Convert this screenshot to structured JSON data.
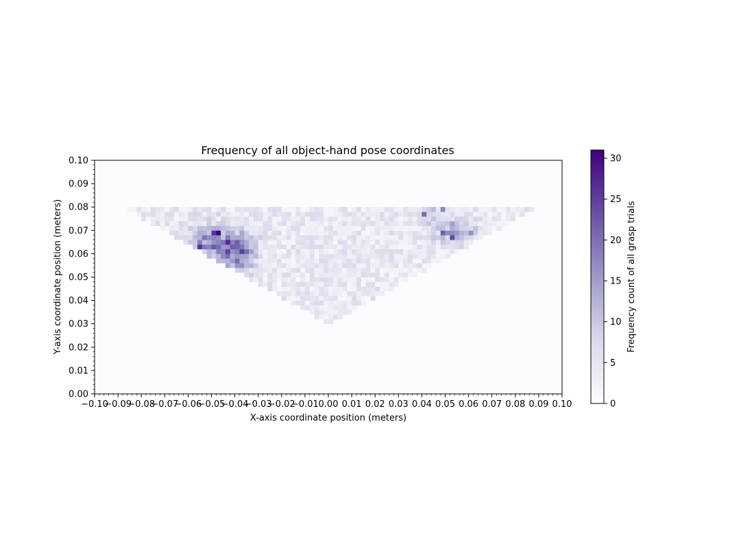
{
  "chart_data": {
    "type": "heatmap",
    "title": "Frequency of all object-hand pose coordinates",
    "xlabel": "X-axis coordinate position (meters)",
    "ylabel": "Y-axis coordinate position (meters)",
    "colorbar_label": "Frequency count of all grasp trials",
    "xlim": [
      -0.1,
      0.1
    ],
    "ylim": [
      0.0,
      0.1
    ],
    "color_range": [
      0,
      31
    ],
    "colormap": "Purples",
    "background_color": "#fcfbfd",
    "bin_size": 0.002,
    "x_ticks": [
      {
        "value": -0.1,
        "label": "−0.10"
      },
      {
        "value": -0.09,
        "label": "−0.09"
      },
      {
        "value": -0.08,
        "label": "−0.08"
      },
      {
        "value": -0.07,
        "label": "−0.07"
      },
      {
        "value": -0.06,
        "label": "−0.06"
      },
      {
        "value": -0.05,
        "label": "−0.05"
      },
      {
        "value": -0.04,
        "label": "−0.04"
      },
      {
        "value": -0.03,
        "label": "−0.03"
      },
      {
        "value": -0.02,
        "label": "−0.02"
      },
      {
        "value": -0.01,
        "label": "−0.01"
      },
      {
        "value": 0.0,
        "label": "0.00"
      },
      {
        "value": 0.01,
        "label": "0.01"
      },
      {
        "value": 0.02,
        "label": "0.02"
      },
      {
        "value": 0.03,
        "label": "0.03"
      },
      {
        "value": 0.04,
        "label": "0.04"
      },
      {
        "value": 0.05,
        "label": "0.05"
      },
      {
        "value": 0.06,
        "label": "0.06"
      },
      {
        "value": 0.07,
        "label": "0.07"
      },
      {
        "value": 0.08,
        "label": "0.08"
      },
      {
        "value": 0.09,
        "label": "0.09"
      },
      {
        "value": 0.1,
        "label": "0.10"
      }
    ],
    "y_ticks": [
      {
        "value": 0.0,
        "label": "0.00"
      },
      {
        "value": 0.01,
        "label": "0.01"
      },
      {
        "value": 0.02,
        "label": "0.02"
      },
      {
        "value": 0.03,
        "label": "0.03"
      },
      {
        "value": 0.04,
        "label": "0.04"
      },
      {
        "value": 0.05,
        "label": "0.05"
      },
      {
        "value": 0.06,
        "label": "0.06"
      },
      {
        "value": 0.07,
        "label": "0.07"
      },
      {
        "value": 0.08,
        "label": "0.08"
      },
      {
        "value": 0.09,
        "label": "0.09"
      },
      {
        "value": 0.1,
        "label": "0.10"
      }
    ],
    "colorbar_ticks": [
      {
        "value": 0,
        "label": "0"
      },
      {
        "value": 5,
        "label": "5"
      },
      {
        "value": 10,
        "label": "10"
      },
      {
        "value": 15,
        "label": "15"
      },
      {
        "value": 20,
        "label": "20"
      },
      {
        "value": 25,
        "label": "25"
      },
      {
        "value": 30,
        "label": "30"
      }
    ],
    "data_region": {
      "shape": "inverted-triangle",
      "vertices": [
        [
          -0.088,
          0.08
        ],
        [
          0.09,
          0.08
        ],
        [
          0.0,
          0.03
        ]
      ],
      "typical_count": 5
    },
    "hotspots": [
      {
        "x": -0.047,
        "y": 0.064,
        "sx": 0.0085,
        "sy": 0.0055,
        "peak": 13
      },
      {
        "x": -0.038,
        "y": 0.059,
        "sx": 0.0045,
        "sy": 0.005,
        "peak": 9
      },
      {
        "x": 0.053,
        "y": 0.07,
        "sx": 0.006,
        "sy": 0.004,
        "peak": 10
      },
      {
        "x": 0.043,
        "y": 0.077,
        "sx": 0.003,
        "sy": 0.003,
        "peak": 6
      }
    ],
    "highlight_cells": [
      {
        "x": -0.047,
        "y": 0.069,
        "value": 31
      },
      {
        "x": -0.049,
        "y": 0.069,
        "value": 26
      },
      {
        "x": -0.055,
        "y": 0.063,
        "value": 26
      },
      {
        "x": -0.043,
        "y": 0.065,
        "value": 27
      },
      {
        "x": -0.037,
        "y": 0.061,
        "value": 25
      },
      {
        "x": -0.041,
        "y": 0.063,
        "value": 22
      },
      {
        "x": -0.053,
        "y": 0.067,
        "value": 20
      },
      {
        "x": -0.039,
        "y": 0.059,
        "value": 21
      },
      {
        "x": 0.053,
        "y": 0.067,
        "value": 24
      },
      {
        "x": 0.051,
        "y": 0.069,
        "value": 22
      },
      {
        "x": 0.041,
        "y": 0.077,
        "value": 21
      },
      {
        "x": 0.049,
        "y": 0.079,
        "value": 18
      },
      {
        "x": 0.061,
        "y": 0.071,
        "value": 17
      }
    ]
  }
}
